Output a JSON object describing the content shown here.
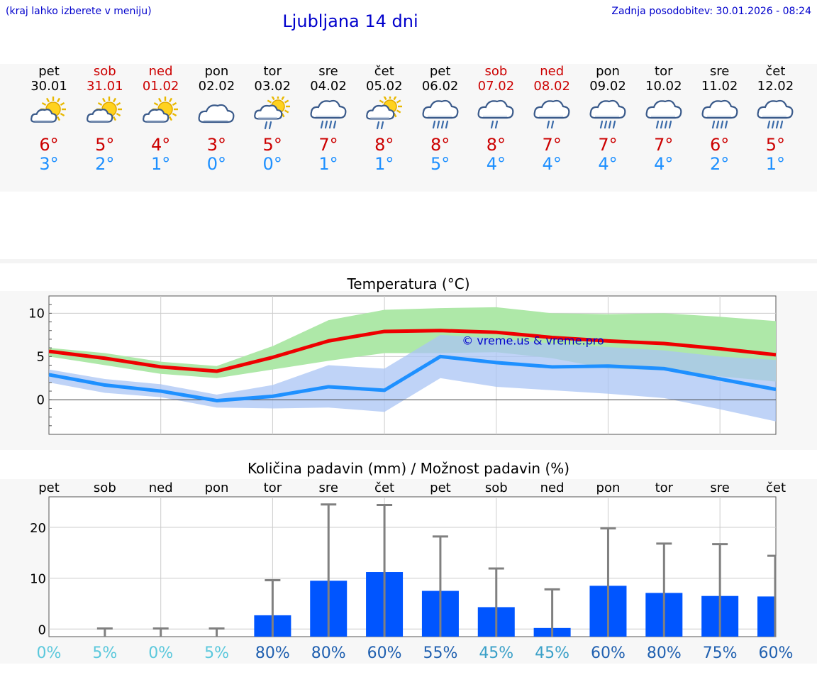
{
  "header": {
    "hint": "(kraj lahko izberete v meniju)",
    "title": "Ljubljana 14 dni",
    "updated": "Zadnja posodobitev: 30.01.2026 - 08:24"
  },
  "days": [
    {
      "name": "pet",
      "date": "30.01",
      "weekend": false,
      "icon": "sun-cloud-icon",
      "max": "6°",
      "min": "3°"
    },
    {
      "name": "sob",
      "date": "31.01",
      "weekend": true,
      "icon": "sun-cloud-icon",
      "max": "5°",
      "min": "2°"
    },
    {
      "name": "ned",
      "date": "01.02",
      "weekend": true,
      "icon": "sun-cloud-icon",
      "max": "4°",
      "min": "1°"
    },
    {
      "name": "pon",
      "date": "02.02",
      "weekend": false,
      "icon": "cloud-icon",
      "max": "3°",
      "min": "0°"
    },
    {
      "name": "tor",
      "date": "03.02",
      "weekend": false,
      "icon": "sun-cloud-rain-icon",
      "max": "5°",
      "min": "0°"
    },
    {
      "name": "sre",
      "date": "04.02",
      "weekend": false,
      "icon": "cloud-rain-icon",
      "max": "7°",
      "min": "1°"
    },
    {
      "name": "čet",
      "date": "05.02",
      "weekend": false,
      "icon": "sun-cloud-rain-icon",
      "max": "8°",
      "min": "1°"
    },
    {
      "name": "pet",
      "date": "06.02",
      "weekend": false,
      "icon": "cloud-rain-icon",
      "max": "8°",
      "min": "5°"
    },
    {
      "name": "sob",
      "date": "07.02",
      "weekend": true,
      "icon": "cloud-light-rain-icon",
      "max": "8°",
      "min": "4°"
    },
    {
      "name": "ned",
      "date": "08.02",
      "weekend": true,
      "icon": "cloud-light-rain-icon",
      "max": "7°",
      "min": "4°"
    },
    {
      "name": "pon",
      "date": "09.02",
      "weekend": false,
      "icon": "cloud-rain-icon",
      "max": "7°",
      "min": "4°"
    },
    {
      "name": "tor",
      "date": "10.02",
      "weekend": false,
      "icon": "cloud-rain-icon",
      "max": "7°",
      "min": "4°"
    },
    {
      "name": "sre",
      "date": "11.02",
      "weekend": false,
      "icon": "cloud-rain-icon",
      "max": "6°",
      "min": "2°"
    },
    {
      "name": "čet",
      "date": "12.02",
      "weekend": false,
      "icon": "cloud-rain-icon",
      "max": "5°",
      "min": "1°"
    }
  ],
  "colors": {
    "title_blue": "#0000cc",
    "max_red": "#cc0000",
    "min_blue": "#1e90ff",
    "bar_blue": "#0055ff",
    "green_band": "#aee8a8",
    "blue_band": "#aac4f4",
    "prob_light": "#5bc8dc",
    "prob_dark": "#2060b0"
  },
  "chart_data": [
    {
      "type": "line",
      "title": "Temperatura (°C)",
      "watermark": "© vreme.us & vreme.pro",
      "x_days": 13,
      "ylim": [
        -4,
        12
      ],
      "yticks": [
        "10",
        "5",
        "0"
      ],
      "grid": true,
      "series": [
        {
          "name": "max",
          "color": "#ee0000",
          "x": [
            0,
            1,
            2,
            3,
            4,
            5,
            6,
            7,
            8,
            9,
            10,
            11,
            12,
            13
          ],
          "values": [
            5.6,
            4.8,
            3.8,
            3.3,
            4.9,
            6.8,
            7.9,
            8.0,
            7.8,
            7.2,
            6.8,
            6.5,
            5.9,
            5.2
          ]
        },
        {
          "name": "min",
          "color": "#1e90ff",
          "x": [
            0,
            1,
            2,
            3,
            4,
            5,
            6,
            7,
            8,
            9,
            10,
            11,
            12,
            13
          ],
          "values": [
            2.9,
            1.7,
            1.0,
            -0.1,
            0.4,
            1.5,
            1.1,
            5.0,
            4.3,
            3.8,
            3.9,
            3.6,
            2.4,
            1.2
          ]
        }
      ],
      "bands": [
        {
          "name": "max-range",
          "upper": [
            6.0,
            5.4,
            4.4,
            3.9,
            6.2,
            9.2,
            10.4,
            10.6,
            10.7,
            10.0,
            9.9,
            10.0,
            9.6,
            9.1
          ],
          "lower": [
            5.0,
            4.0,
            3.0,
            2.5,
            3.5,
            4.5,
            5.4,
            5.4,
            5.5,
            4.8,
            3.6,
            3.4,
            2.7,
            2.1
          ]
        },
        {
          "name": "min-range",
          "upper": [
            3.5,
            2.4,
            1.8,
            0.6,
            1.7,
            4.0,
            3.6,
            7.5,
            7.1,
            6.5,
            6.1,
            5.7,
            5.0,
            4.6
          ],
          "lower": [
            2.0,
            0.8,
            0.3,
            -0.9,
            -1.0,
            -0.9,
            -1.4,
            2.5,
            1.5,
            1.1,
            0.7,
            0.2,
            -1.1,
            -2.5
          ]
        }
      ]
    },
    {
      "type": "bar",
      "title": "Količina padavin (mm) / Možnost padavin (%)",
      "categories": [
        "pet",
        "sob",
        "ned",
        "pon",
        "tor",
        "sre",
        "čet",
        "pet",
        "sob",
        "ned",
        "pon",
        "tor",
        "sre",
        "čet"
      ],
      "values": [
        0,
        0,
        0,
        0,
        2.7,
        9.5,
        11.2,
        7.5,
        4.3,
        0.2,
        8.5,
        7.1,
        6.5,
        6.4
      ],
      "error_max": [
        0,
        0.1,
        0.1,
        0.1,
        9.6,
        24.5,
        24.4,
        18.2,
        11.9,
        7.8,
        19.8,
        16.8,
        16.7,
        14.4
      ],
      "probability": [
        "0%",
        "5%",
        "0%",
        "5%",
        "80%",
        "80%",
        "60%",
        "55%",
        "45%",
        "45%",
        "60%",
        "80%",
        "75%",
        "60%"
      ],
      "ylim": [
        -1.5,
        26
      ],
      "yticks": [
        "20",
        "10",
        "0"
      ],
      "grid": true
    }
  ]
}
